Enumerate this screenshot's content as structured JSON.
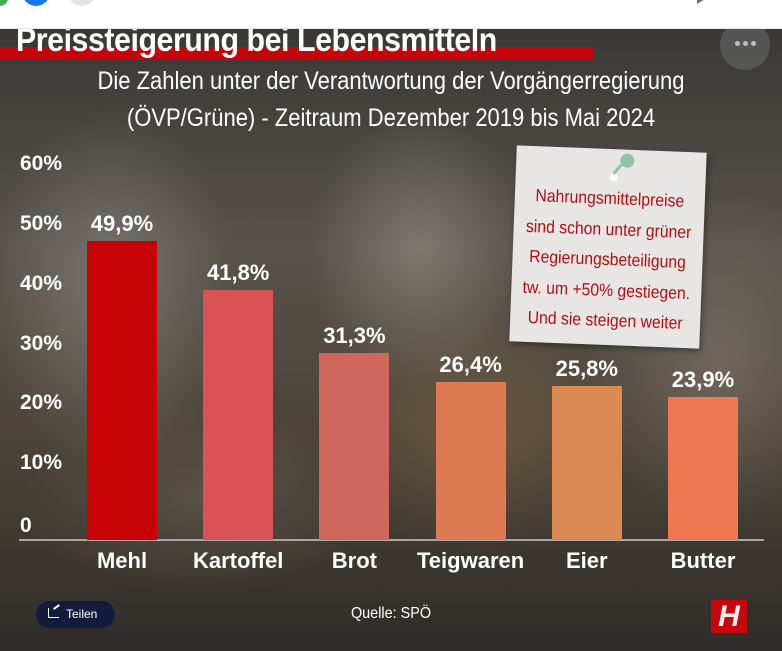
{
  "browser_bar": {
    "icons": [
      "green-circle-icon",
      "facebook-icon",
      "grey-circle-icon",
      "play-icon"
    ]
  },
  "header": {
    "title": "Preissteigerung bei Lebensmitteln",
    "more_icon": "more-horizontal-icon",
    "accent_color": "#c4050a"
  },
  "chart_data": {
    "type": "bar",
    "title": "Preissteigerung bei Lebensmitteln",
    "subtitle_lines": [
      "Die Zahlen unter der Verantwortung der Vorgängerregierung",
      "(ÖVP/Grüne) - Zeitraum Dezember 2019 bis Mai 2024"
    ],
    "xlabel": "",
    "ylabel": "",
    "ylim": [
      0,
      60
    ],
    "yticks": [
      0,
      10,
      20,
      30,
      40,
      50,
      60
    ],
    "ytick_labels": [
      "0",
      "10%",
      "20%",
      "30%",
      "40%",
      "50%",
      "60%"
    ],
    "categories": [
      "Mehl",
      "Kartoffel",
      "Brot",
      "Teigwaren",
      "Eier",
      "Butter"
    ],
    "values": [
      49.9,
      41.8,
      31.3,
      26.4,
      25.8,
      23.9
    ],
    "value_labels": [
      "49,9%",
      "41,8%",
      "31,3%",
      "26,4%",
      "25,8%",
      "23,9%"
    ],
    "colors": [
      "#c60207",
      "#d95255",
      "#cf675d",
      "#dd7a52",
      "#dc8a54",
      "#ee7850"
    ],
    "grid": false,
    "legend": "none"
  },
  "note": {
    "lines": [
      "Nahrungsmittelpreise",
      "sind schon unter grüner",
      "Regierungsbeteiligung",
      "tw. um +50% gestiegen.",
      "Und sie steigen weiter"
    ],
    "text_color": "#b30d12",
    "pin_icon": "pushpin-icon"
  },
  "footer": {
    "share_label": "Teilen",
    "share_icon": "share-icon",
    "source": "Quelle: SPÖ",
    "logo_letter": "H"
  }
}
